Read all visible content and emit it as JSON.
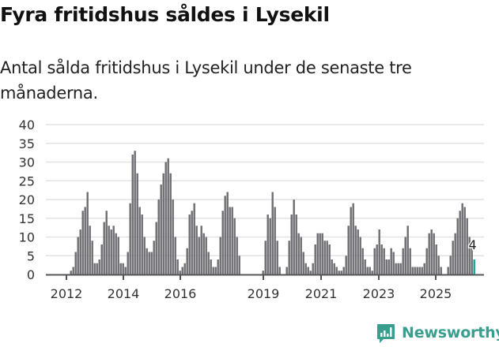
{
  "header": {
    "title": "Fyra fritidshus såldes i Lysekil",
    "subtitle": "Antal sålda fritidshus i Lysekil under de senaste tre månaderna."
  },
  "logo": {
    "text": "Newsworthy",
    "icon": "bar-chart-speech-bubble-icon",
    "color": "#3a9e8f"
  },
  "colors": {
    "bar": "#6e6d73",
    "highlight": "#14a394",
    "grid": "#e3e3e3",
    "axis": "#555555"
  },
  "chart_data": {
    "type": "bar",
    "title": "Fyra fritidshus såldes i Lysekil",
    "subtitle": "Antal sålda fritidshus i Lysekil under de senaste tre månaderna.",
    "xlabel": "",
    "ylabel": "",
    "ylim": [
      0,
      40
    ],
    "yticks": [
      0,
      5,
      10,
      15,
      20,
      25,
      30,
      35,
      40
    ],
    "xticks": [
      "2012",
      "2014",
      "2016",
      "2019",
      "2021",
      "2023",
      "2025"
    ],
    "grid": true,
    "legend": null,
    "annotation": {
      "label": "4",
      "target": "last bar"
    },
    "frequency": "monthly (rolling three-month sum)",
    "start": "2011-03",
    "values": [
      0,
      0,
      0,
      0,
      0,
      0,
      0,
      0,
      0,
      0,
      1,
      2,
      6,
      10,
      12,
      17,
      18,
      22,
      13,
      9,
      3,
      3,
      4,
      8,
      14,
      17,
      13,
      12,
      13,
      11,
      10,
      3,
      3,
      2,
      6,
      19,
      32,
      33,
      27,
      18,
      16,
      10,
      7,
      6,
      6,
      9,
      14,
      20,
      24,
      27,
      30,
      31,
      27,
      20,
      10,
      4,
      1,
      2,
      3,
      7,
      16,
      17,
      19,
      13,
      10,
      13,
      11,
      10,
      6,
      4,
      2,
      2,
      4,
      10,
      17,
      21,
      22,
      18,
      18,
      15,
      10,
      5,
      0,
      0,
      0,
      0,
      0,
      0,
      0,
      0,
      0,
      1,
      9,
      16,
      15,
      22,
      18,
      9,
      2,
      0,
      0,
      2,
      9,
      16,
      20,
      16,
      11,
      10,
      6,
      3,
      2,
      1,
      3,
      8,
      11,
      11,
      11,
      9,
      9,
      8,
      4,
      3,
      2,
      1,
      1,
      2,
      5,
      13,
      18,
      19,
      13,
      12,
      10,
      7,
      4,
      2,
      2,
      1,
      7,
      8,
      12,
      8,
      7,
      4,
      4,
      7,
      6,
      3,
      3,
      3,
      7,
      10,
      13,
      7,
      2,
      2,
      2,
      2,
      2,
      3,
      7,
      11,
      12,
      11,
      8,
      5,
      2,
      0,
      0,
      2,
      5,
      9,
      11,
      15,
      17,
      19,
      18,
      15,
      10,
      7,
      4
    ]
  }
}
